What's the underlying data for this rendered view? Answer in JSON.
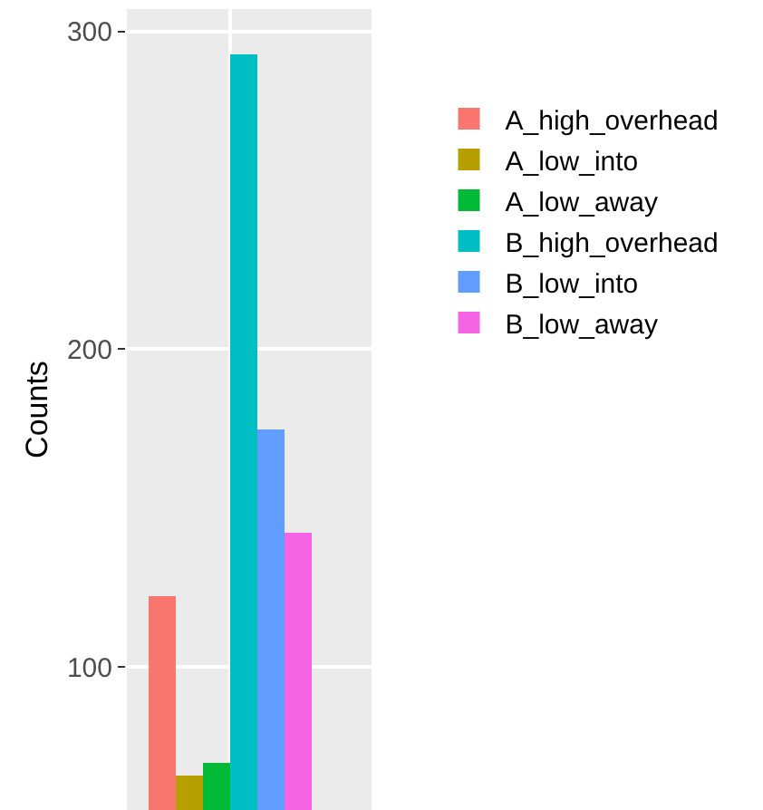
{
  "chart_data": {
    "type": "bar",
    "categories": [
      null
    ],
    "ylabel": "Counts",
    "ylim": [
      55,
      307
    ],
    "yticks": [
      100,
      200,
      300
    ],
    "grid": true,
    "legend": "right",
    "tick_labels": "y",
    "series": [
      {
        "name": "A_high_overhead",
        "color": "#f8766d",
        "values": [
          122
        ]
      },
      {
        "name": "A_low_into",
        "color": "#b79f00",
        "values": [
          66
        ]
      },
      {
        "name": "A_low_away",
        "color": "#00ba38",
        "values": [
          70
        ]
      },
      {
        "name": "B_high_overhead",
        "color": "#00bfc4",
        "values": [
          293
        ]
      },
      {
        "name": "B_low_into",
        "color": "#619cff",
        "values": [
          175
        ]
      },
      {
        "name": "B_low_away",
        "color": "#f564e3",
        "values": [
          142
        ]
      }
    ]
  }
}
